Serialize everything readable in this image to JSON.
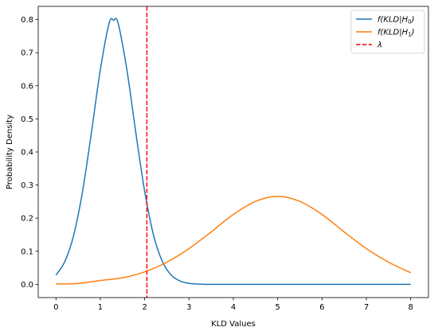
{
  "chart_data": {
    "type": "line",
    "title": "",
    "xlabel": "KLD Values",
    "ylabel": "Probability Density",
    "xlim": [
      -0.4,
      8.4
    ],
    "ylim": [
      -0.04,
      0.84
    ],
    "xticks": [
      0,
      1,
      2,
      3,
      4,
      5,
      6,
      7,
      8
    ],
    "yticks": [
      0.0,
      0.1,
      0.2,
      0.3,
      0.4,
      0.5,
      0.6,
      0.7,
      0.8
    ],
    "xtick_labels": [
      "0",
      "1",
      "2",
      "3",
      "4",
      "5",
      "6",
      "7",
      "8"
    ],
    "ytick_labels": [
      "0.0",
      "0.1",
      "0.2",
      "0.3",
      "0.4",
      "0.5",
      "0.6",
      "0.7",
      "0.8"
    ],
    "grid": false,
    "legend_position": "top-right",
    "series": [
      {
        "name": "f(KLD|H0)",
        "color": "#1f77b4",
        "x": [
          0.0,
          0.2,
          0.4,
          0.6,
          0.8,
          1.0,
          1.2,
          1.3,
          1.4,
          1.6,
          1.8,
          2.0,
          2.2,
          2.4,
          2.6,
          2.8,
          3.0,
          3.2,
          3.4,
          3.6,
          3.8,
          4.0,
          5.0,
          6.0,
          7.0,
          8.0
        ],
        "y": [
          0.028,
          0.069,
          0.149,
          0.281,
          0.459,
          0.648,
          0.79,
          0.798,
          0.79,
          0.648,
          0.459,
          0.281,
          0.149,
          0.069,
          0.028,
          0.01,
          0.003,
          0.001,
          0.0,
          0.0,
          0.0,
          0.0,
          0.0,
          0.0,
          0.0,
          0.0
        ]
      },
      {
        "name": "f(KLD|H1)",
        "color": "#ff7f0e",
        "x": [
          0.0,
          0.5,
          1.0,
          1.5,
          2.0,
          2.5,
          3.0,
          3.5,
          4.0,
          4.5,
          5.0,
          5.5,
          6.0,
          6.5,
          7.0,
          7.5,
          8.0
        ],
        "y": [
          0.0011,
          0.0028,
          0.0116,
          0.0197,
          0.0377,
          0.067,
          0.108,
          0.1584,
          0.2113,
          0.2506,
          0.266,
          0.2506,
          0.2113,
          0.1584,
          0.108,
          0.067,
          0.035
        ]
      }
    ],
    "threshold": {
      "name": "λ",
      "x": 2.05,
      "color": "#ff0000",
      "style": "dashed"
    },
    "legend": [
      {
        "label_main": "f",
        "label_args": "(KLD|H",
        "sub": "0",
        "close": ")",
        "color": "#1f77b4",
        "style": "solid"
      },
      {
        "label_main": "f",
        "label_args": "(KLD|H",
        "sub": "1",
        "close": ")",
        "color": "#ff7f0e",
        "style": "solid"
      },
      {
        "label_main": "λ",
        "color": "#ff0000",
        "style": "dashed"
      }
    ]
  }
}
